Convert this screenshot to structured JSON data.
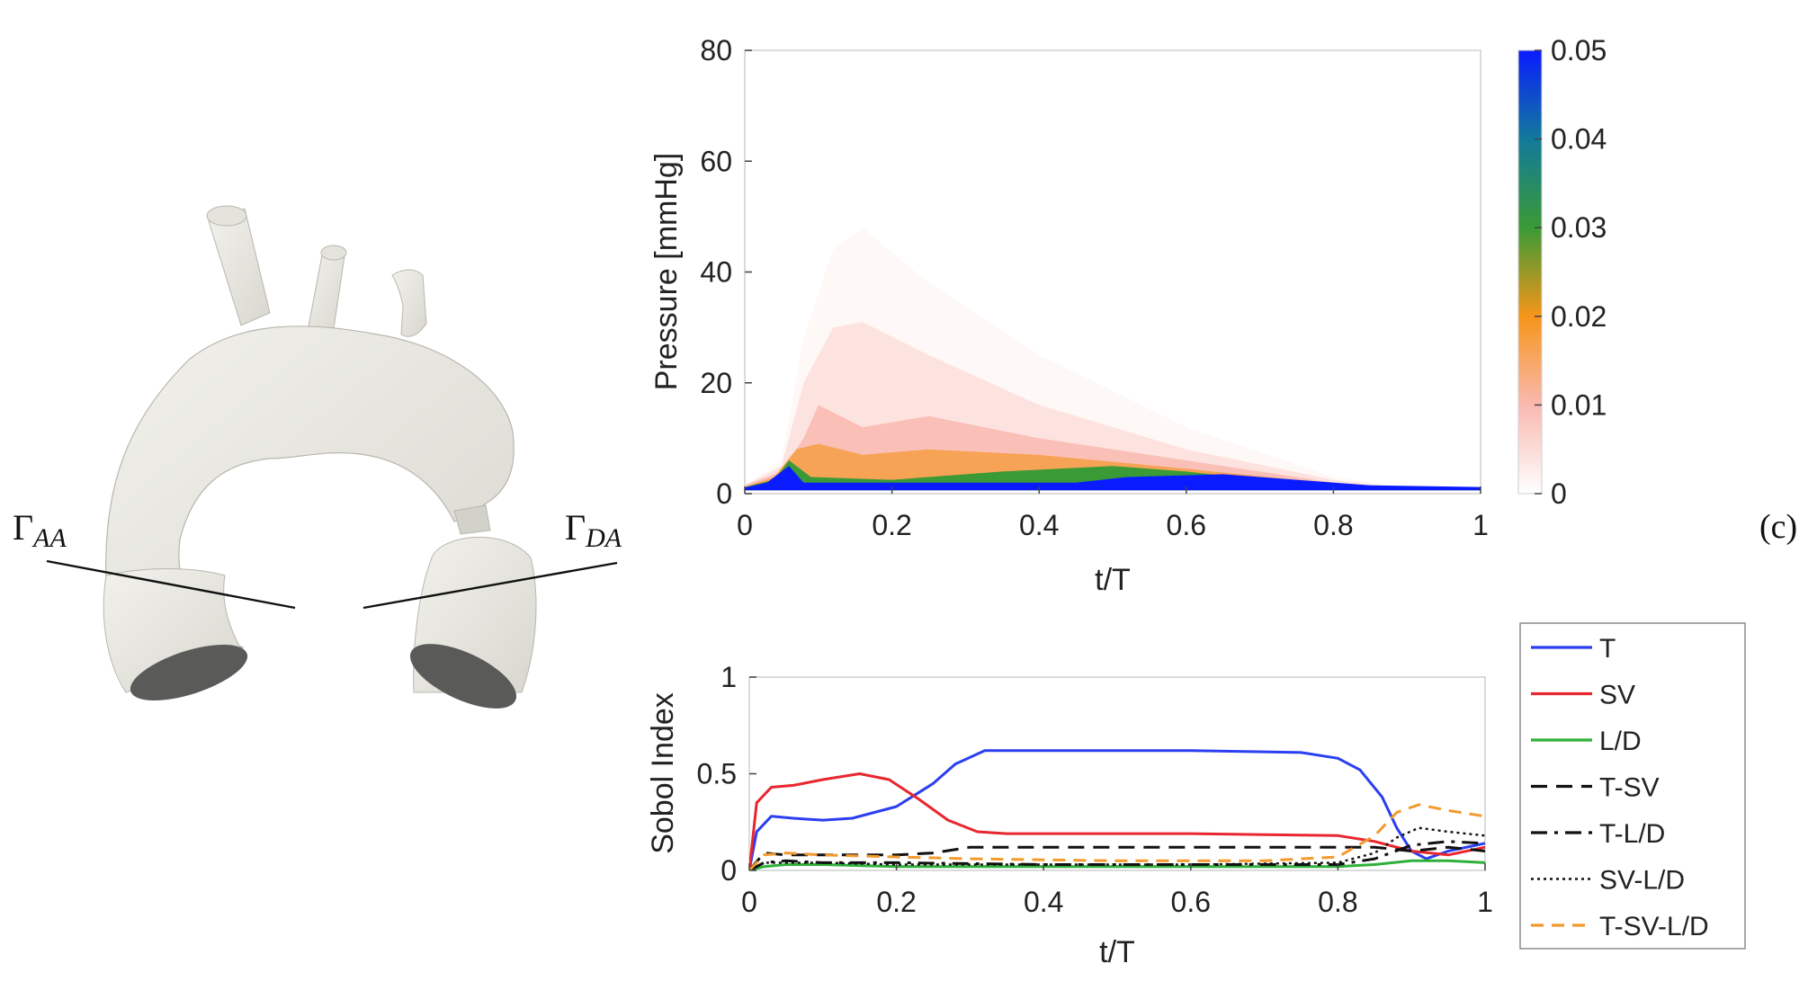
{
  "panel_label": "(c)",
  "aorta": {
    "gamma": "Γ",
    "labels": [
      {
        "sub": "AA"
      },
      {
        "sub": "DA"
      }
    ]
  },
  "colors": {
    "aorta_fill": "#e9e8e1",
    "aorta_shade": "#c9c8c0",
    "series": {
      "T": "#2b3ff0",
      "SV": "#e8262f",
      "L/D": "#2fb03a",
      "T-SV": "#111111",
      "T-L/D": "#111111",
      "SV-L/D": "#111111",
      "T-SV-L/D": "#f29a2e"
    }
  },
  "chart_data": [
    {
      "type": "heatmap",
      "xlabel": "t/T",
      "ylabel": "Pressure [mmHg]",
      "xlim": [
        0,
        1
      ],
      "ylim": [
        0,
        80
      ],
      "xticks": [
        "0",
        "0.2",
        "0.4",
        "0.6",
        "0.8",
        "1"
      ],
      "yticks": [
        "0",
        "20",
        "40",
        "60",
        "80"
      ],
      "colorbar": {
        "range": [
          0,
          0.05
        ],
        "ticks": [
          "0",
          "0.01",
          "0.02",
          "0.03",
          "0.04",
          "0.05"
        ],
        "colors": [
          "#ffffff",
          "#f9b9b0",
          "#f6951a",
          "#3a9a36",
          "#127a9a",
          "#0a1cff"
        ]
      },
      "density_bands": [
        {
          "t": [
            0.0,
            0.05,
            0.08,
            0.12,
            0.16,
            0.25,
            0.4,
            0.6,
            0.8,
            0.9,
            1.0
          ],
          "upper": [
            1.5,
            6,
            28,
            44,
            48,
            38,
            25,
            12,
            3,
            1,
            1
          ],
          "level": 0.001
        },
        {
          "t": [
            0.0,
            0.05,
            0.08,
            0.12,
            0.16,
            0.25,
            0.4,
            0.6,
            0.8,
            0.9,
            1.0
          ],
          "upper": [
            1.5,
            5,
            20,
            30,
            31,
            25,
            16,
            8,
            2.5,
            1,
            1
          ],
          "level": 0.004
        },
        {
          "t": [
            0.0,
            0.05,
            0.08,
            0.1,
            0.16,
            0.25,
            0.4,
            0.6,
            0.8,
            0.9,
            1.0
          ],
          "upper": [
            1.5,
            4,
            10,
            16,
            12,
            14,
            10,
            6,
            2,
            1,
            1
          ],
          "level": 0.009
        },
        {
          "t": [
            0.0,
            0.04,
            0.07,
            0.1,
            0.16,
            0.25,
            0.4,
            0.6,
            0.8,
            0.9,
            1.0
          ],
          "upper": [
            1.2,
            3,
            8,
            9,
            7,
            8,
            7,
            4.5,
            1.8,
            1,
            1
          ],
          "level": 0.016
        },
        {
          "t": [
            0.0,
            0.04,
            0.06,
            0.09,
            0.2,
            0.35,
            0.5,
            0.6,
            0.75,
            0.85,
            1.0
          ],
          "upper": [
            1.2,
            2.5,
            6,
            3,
            2.5,
            4,
            5,
            4,
            1.8,
            1,
            1
          ],
          "level": 0.03
        },
        {
          "t": [
            0.0,
            0.03,
            0.06,
            0.08,
            0.45,
            0.52,
            0.65,
            0.75,
            0.85,
            1.0
          ],
          "upper": [
            1.1,
            2,
            5,
            2,
            2,
            3,
            3.5,
            2.5,
            1.5,
            1.2
          ],
          "level": 0.05
        }
      ]
    },
    {
      "type": "line",
      "xlabel": "t/T",
      "ylabel": "Sobol Index",
      "xlim": [
        0,
        1
      ],
      "ylim": [
        0,
        1
      ],
      "xticks": [
        "0",
        "0.2",
        "0.4",
        "0.6",
        "0.8",
        "1"
      ],
      "yticks": [
        "0",
        "0.5",
        "1"
      ],
      "legend": "right",
      "series": [
        {
          "name": "T",
          "dash": "solid",
          "x": [
            0,
            0.01,
            0.03,
            0.06,
            0.1,
            0.14,
            0.2,
            0.25,
            0.28,
            0.32,
            0.4,
            0.6,
            0.75,
            0.8,
            0.83,
            0.86,
            0.88,
            0.9,
            0.92,
            0.95,
            1.0
          ],
          "y": [
            0,
            0.2,
            0.28,
            0.27,
            0.26,
            0.27,
            0.33,
            0.45,
            0.55,
            0.62,
            0.62,
            0.62,
            0.61,
            0.58,
            0.52,
            0.38,
            0.22,
            0.1,
            0.06,
            0.1,
            0.14
          ]
        },
        {
          "name": "SV",
          "dash": "solid",
          "x": [
            0,
            0.01,
            0.03,
            0.06,
            0.1,
            0.15,
            0.19,
            0.23,
            0.27,
            0.31,
            0.35,
            0.6,
            0.8,
            0.85,
            0.9,
            0.95,
            1.0
          ],
          "y": [
            0,
            0.35,
            0.43,
            0.44,
            0.47,
            0.5,
            0.47,
            0.37,
            0.26,
            0.2,
            0.19,
            0.19,
            0.18,
            0.15,
            0.1,
            0.08,
            0.12
          ]
        },
        {
          "name": "L/D",
          "dash": "solid",
          "x": [
            0,
            0.02,
            0.05,
            0.1,
            0.2,
            0.4,
            0.6,
            0.8,
            0.85,
            0.9,
            0.95,
            1.0
          ],
          "y": [
            0,
            0.02,
            0.03,
            0.03,
            0.02,
            0.02,
            0.02,
            0.02,
            0.03,
            0.05,
            0.05,
            0.04
          ]
        },
        {
          "name": "T-SV",
          "dash": "dash",
          "x": [
            0,
            0.02,
            0.05,
            0.1,
            0.2,
            0.25,
            0.3,
            0.4,
            0.6,
            0.8,
            0.85,
            0.9,
            0.95,
            1.0
          ],
          "y": [
            0,
            0.09,
            0.08,
            0.08,
            0.08,
            0.09,
            0.12,
            0.12,
            0.12,
            0.12,
            0.12,
            0.1,
            0.12,
            0.1
          ]
        },
        {
          "name": "T-L/D",
          "dash": "dashdot",
          "x": [
            0,
            0.02,
            0.05,
            0.1,
            0.2,
            0.4,
            0.6,
            0.8,
            0.85,
            0.9,
            0.95,
            1.0
          ],
          "y": [
            0,
            0.04,
            0.05,
            0.04,
            0.04,
            0.03,
            0.03,
            0.03,
            0.06,
            0.13,
            0.15,
            0.14
          ]
        },
        {
          "name": "SV-L/D",
          "dash": "dot",
          "x": [
            0,
            0.02,
            0.05,
            0.1,
            0.2,
            0.4,
            0.6,
            0.8,
            0.85,
            0.88,
            0.91,
            0.95,
            1.0
          ],
          "y": [
            0,
            0.04,
            0.04,
            0.04,
            0.03,
            0.03,
            0.03,
            0.04,
            0.09,
            0.17,
            0.22,
            0.2,
            0.18
          ]
        },
        {
          "name": "T-SV-L/D",
          "dash": "orange-dash",
          "x": [
            0,
            0.02,
            0.05,
            0.1,
            0.2,
            0.3,
            0.5,
            0.7,
            0.8,
            0.85,
            0.88,
            0.91,
            0.95,
            1.0
          ],
          "y": [
            0,
            0.08,
            0.09,
            0.08,
            0.07,
            0.06,
            0.05,
            0.05,
            0.07,
            0.18,
            0.3,
            0.34,
            0.31,
            0.28
          ]
        }
      ]
    }
  ]
}
